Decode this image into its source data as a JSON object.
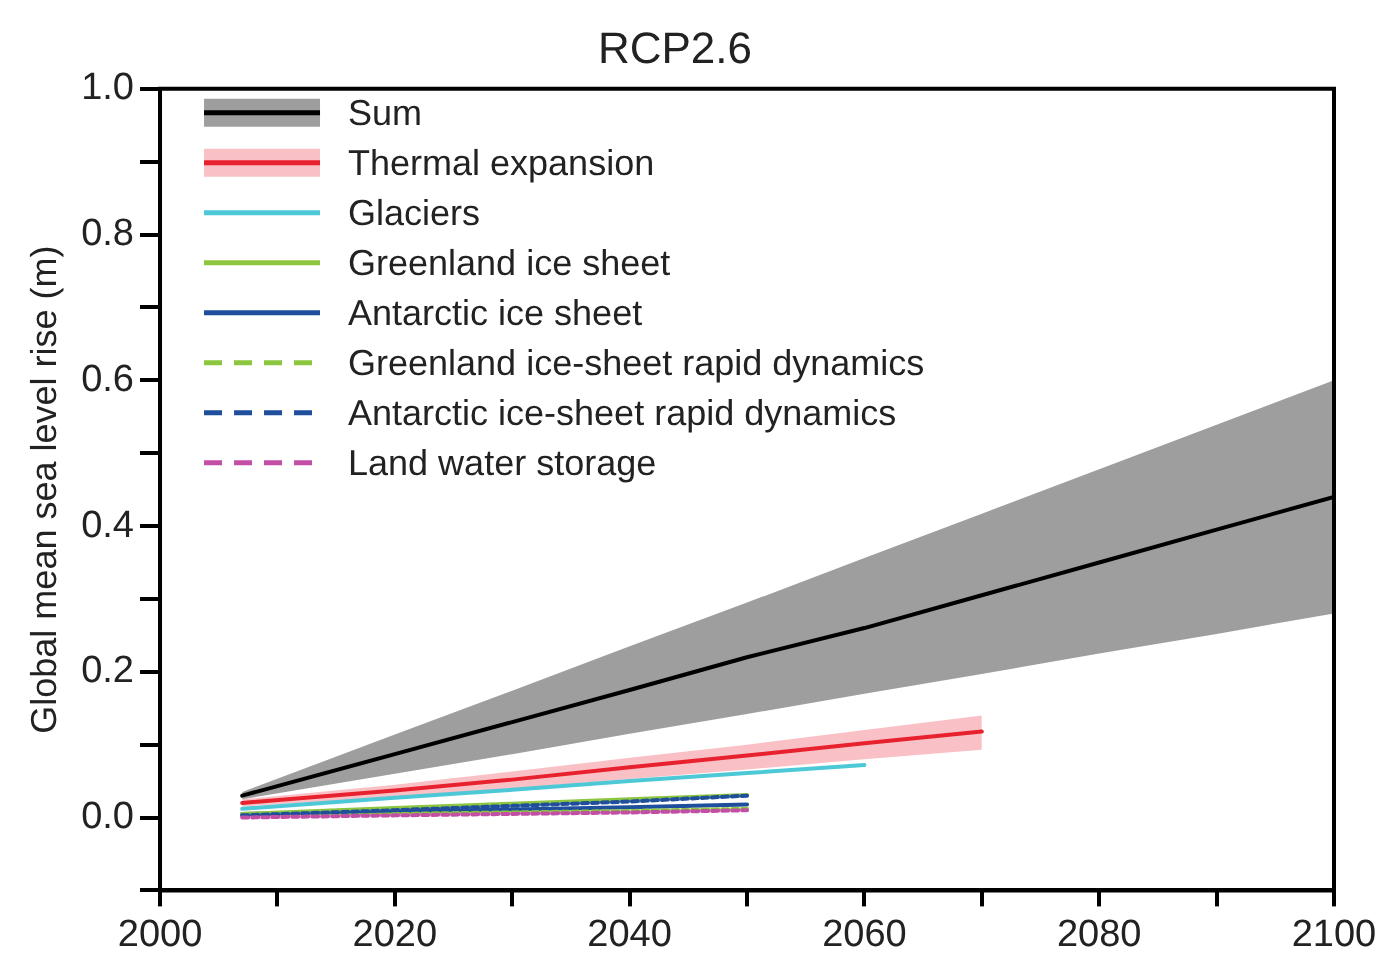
{
  "chart_data": {
    "type": "line",
    "title": "RCP2.6",
    "ylabel": "Global mean sea level rise (m)",
    "x": [
      2007,
      2020,
      2030,
      2040,
      2050,
      2060,
      2070,
      2080,
      2090,
      2100
    ],
    "xlim": [
      2000,
      2100
    ],
    "xticks": [
      2000,
      {
        "value": 2010,
        "label": null
      },
      2020,
      {
        "value": 2030,
        "label": null
      },
      2040,
      {
        "value": 2050,
        "label": null
      },
      2060,
      {
        "value": 2070,
        "label": null
      },
      2080,
      {
        "value": 2090,
        "label": null
      },
      2100
    ],
    "ylim": [
      -0.1,
      1.0
    ],
    "yticks": [
      {
        "value": -0.1,
        "label": null
      },
      {
        "value": 0,
        "label": "0.0"
      },
      {
        "value": 0.1,
        "label": null
      },
      {
        "value": 0.2,
        "label": "0.2"
      },
      {
        "value": 0.3,
        "label": null
      },
      {
        "value": 0.4,
        "label": "0.4"
      },
      {
        "value": 0.5,
        "label": null
      },
      {
        "value": 0.6,
        "label": "0.6"
      },
      {
        "value": 0.7,
        "label": null
      },
      {
        "value": 0.8,
        "label": "0.8"
      },
      {
        "value": 0.9,
        "label": null
      },
      {
        "value": 1.0,
        "label": "1.0"
      }
    ],
    "legend": "top left",
    "grid": false,
    "series": [
      {
        "name": "Sum",
        "color": "#000000",
        "values": [
          0.03,
          0.087,
          0.131,
          0.175,
          0.22,
          0.26,
          0.305,
          0.35,
          0.395,
          0.44
        ],
        "lower": [
          0.025,
          0.06,
          0.087,
          0.115,
          0.142,
          0.17,
          0.197,
          0.225,
          0.252,
          0.28
        ],
        "upper": [
          0.035,
          0.114,
          0.174,
          0.235,
          0.295,
          0.356,
          0.417,
          0.478,
          0.539,
          0.6
        ]
      },
      {
        "name": "Thermal expansion",
        "color": "#e8212e",
        "values": [
          0.02,
          0.037,
          0.052,
          0.069,
          0.085,
          0.102,
          0.118,
          null,
          null,
          null
        ],
        "lower": [
          0.015,
          0.028,
          0.04,
          0.053,
          0.066,
          0.08,
          0.093,
          null,
          null,
          null
        ],
        "upper": [
          0.025,
          0.045,
          0.063,
          0.082,
          0.1,
          0.12,
          0.14,
          null,
          null,
          null
        ]
      },
      {
        "name": "Glaciers",
        "color": "#4dc8d6",
        "values": [
          0.012,
          0.027,
          0.038,
          0.05,
          0.061,
          0.072,
          null,
          null,
          null,
          null
        ]
      },
      {
        "name": "Greenland ice sheet",
        "color": "#8cc63f",
        "values": [
          0.005,
          0.013,
          0.019,
          0.025,
          0.031,
          null,
          null,
          null,
          null,
          null
        ]
      },
      {
        "name": "Antarctic ice sheet",
        "color": "#1f4e9c",
        "values": [
          0.005,
          0.008,
          0.011,
          0.014,
          0.018,
          null,
          null,
          null,
          null,
          null
        ]
      },
      {
        "name": "Greenland ice-sheet rapid dynamics",
        "color": "#8cc63f",
        "line_style": "dashed",
        "values": [
          0.003,
          0.005,
          0.007,
          0.009,
          0.012,
          null,
          null,
          null,
          null,
          null
        ]
      },
      {
        "name": "Antarctic ice-sheet rapid dynamics",
        "color": "#1f4e9c",
        "line_style": "dashed",
        "values": [
          0.003,
          0.01,
          0.016,
          0.022,
          0.03,
          null,
          null,
          null,
          null,
          null
        ]
      },
      {
        "name": "Land water storage",
        "color": "#c24ea6",
        "line_style": "dashed",
        "values": [
          0.0,
          0.003,
          0.005,
          0.007,
          0.01,
          null,
          null,
          null,
          null,
          null
        ]
      }
    ]
  }
}
